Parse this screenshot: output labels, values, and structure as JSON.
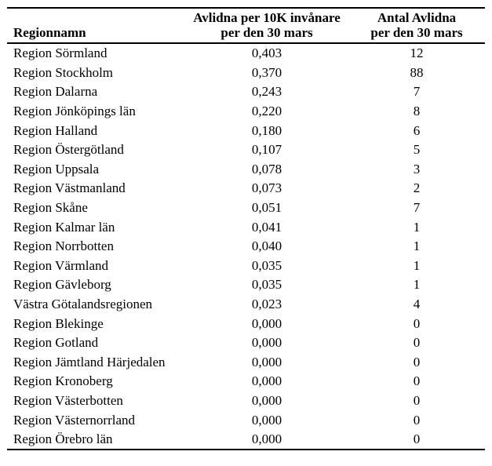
{
  "colors": {
    "background": "#ffffff",
    "text": "#000000",
    "rule": "#000000"
  },
  "table": {
    "columns": [
      {
        "label": "Regionnamn"
      },
      {
        "line1": "Avlidna per 10K invånare",
        "line2": "per den 30 mars"
      },
      {
        "line1": "Antal Avlidna",
        "line2": "per den 30 mars"
      }
    ],
    "rows": [
      {
        "region": "Region Sörmland",
        "rate": "0,403",
        "count": 12
      },
      {
        "region": "Region Stockholm",
        "rate": "0,370",
        "count": 88
      },
      {
        "region": "Region Dalarna",
        "rate": "0,243",
        "count": 7
      },
      {
        "region": "Region Jönköpings län",
        "rate": "0,220",
        "count": 8
      },
      {
        "region": "Region Halland",
        "rate": "0,180",
        "count": 6
      },
      {
        "region": "Region Östergötland",
        "rate": "0,107",
        "count": 5
      },
      {
        "region": "Region Uppsala",
        "rate": "0,078",
        "count": 3
      },
      {
        "region": "Region Västmanland",
        "rate": "0,073",
        "count": 2
      },
      {
        "region": "Region Skåne",
        "rate": "0,051",
        "count": 7
      },
      {
        "region": "Region Kalmar län",
        "rate": "0,041",
        "count": 1
      },
      {
        "region": "Region Norrbotten",
        "rate": "0,040",
        "count": 1
      },
      {
        "region": "Region Värmland",
        "rate": "0,035",
        "count": 1
      },
      {
        "region": "Region Gävleborg",
        "rate": "0,035",
        "count": 1
      },
      {
        "region": "Västra Götalandsregionen",
        "rate": "0,023",
        "count": 4
      },
      {
        "region": "Region Blekinge",
        "rate": "0,000",
        "count": 0
      },
      {
        "region": "Region Gotland",
        "rate": "0,000",
        "count": 0
      },
      {
        "region": "Region Jämtland Härjedalen",
        "rate": "0,000",
        "count": 0
      },
      {
        "region": "Region Kronoberg",
        "rate": "0,000",
        "count": 0
      },
      {
        "region": "Region Västerbotten",
        "rate": "0,000",
        "count": 0
      },
      {
        "region": "Region Västernorrland",
        "rate": "0,000",
        "count": 0
      },
      {
        "region": "Region Örebro län",
        "rate": "0,000",
        "count": 0
      }
    ]
  }
}
